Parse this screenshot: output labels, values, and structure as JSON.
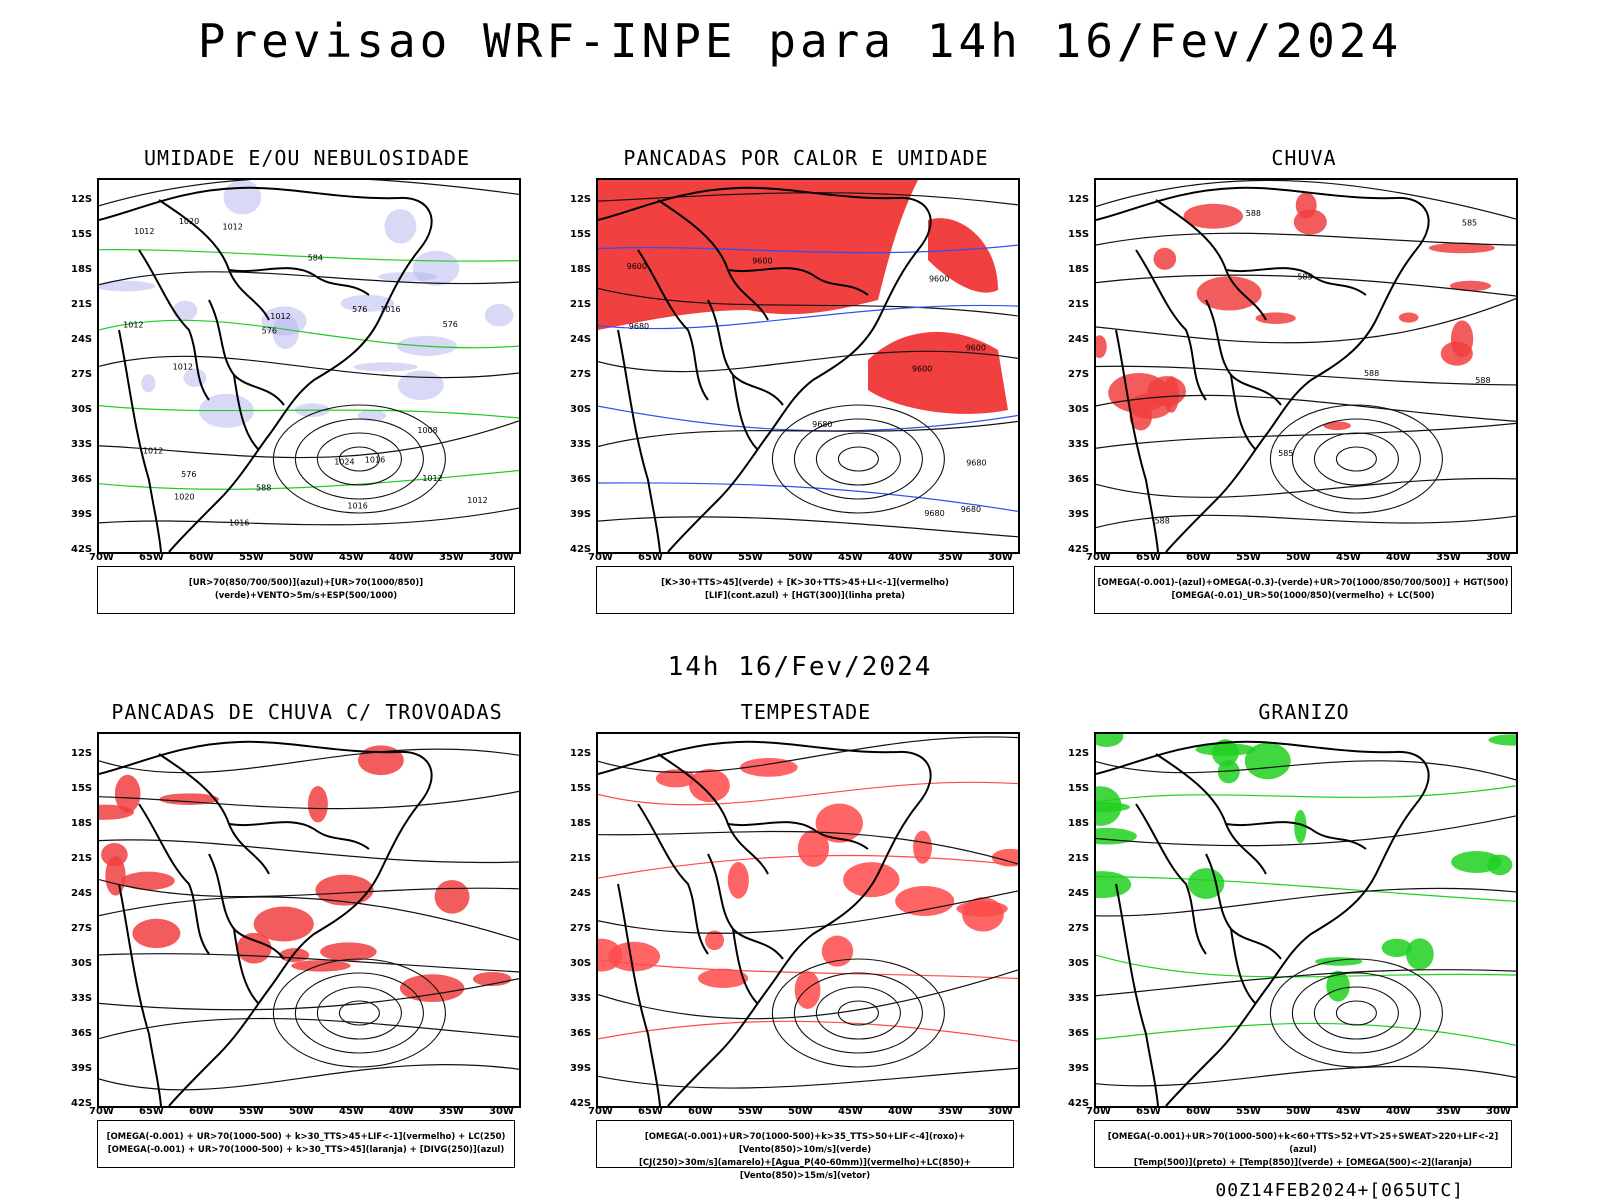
{
  "header": {
    "title": "Previsao WRF-INPE  para 14h 16/Fev/2024"
  },
  "mid_title": "14h 16/Fev/2024",
  "footer_stamp": "00Z14FEB2024+[065UTC]",
  "axes": {
    "lat_ticks": [
      "12S",
      "15S",
      "18S",
      "21S",
      "24S",
      "27S",
      "30S",
      "33S",
      "36S",
      "39S",
      "42S"
    ],
    "lon_ticks": [
      "70W",
      "65W",
      "60W",
      "55W",
      "50W",
      "45W",
      "40W",
      "35W",
      "30W"
    ]
  },
  "panels": [
    {
      "id": "umidade",
      "title": "UMIDADE E/OU NEBULOSIDADE",
      "legend": [
        "[UR>70(850/700/500)](azul)+[UR>70(1000/850)](verde)+VENTO>5m/s+ESP(500/1000)"
      ],
      "contour_labels": [
        "1012",
        "1012",
        "1012",
        "1012",
        "1016",
        "1012",
        "1012",
        "1016",
        "1016",
        "1012",
        "1012",
        "1020",
        "1020",
        "1024",
        "1016",
        "576",
        "576",
        "576",
        "576",
        "584",
        "588",
        "1008"
      ],
      "colors": {
        "fill": "#b8b8f0",
        "line": "#22cc22",
        "dash": "#ff4040"
      }
    },
    {
      "id": "pancadas-calor",
      "title": "PANCADAS POR CALOR E UMIDADE",
      "legend": [
        "[K>30+TTS>45](verde) + [K>30+TTS>45+LI<-1](vermelho)",
        "[LIF](cont.azul) + [HGT(300)](linha preta)"
      ],
      "contour_labels": [
        "9680",
        "9680",
        "9680",
        "9680",
        "9600",
        "9680",
        "9600",
        "9600",
        "9600",
        "9600"
      ],
      "colors": {
        "fill": "#f04040",
        "line": "#3050f0",
        "dark": "#2f4f4f"
      }
    },
    {
      "id": "chuva",
      "title": "CHUVA",
      "legend": [
        "[OMEGA(-0.001)-(azul)+OMEGA(-0.3)-(verde)+UR>70(1000/850/700/500)] + HGT(500)",
        "[OMEGA(-0.01)_UR>50(1000/850)(vermelho) + LC(500)"
      ],
      "contour_labels": [
        "588",
        "588",
        "585",
        "588",
        "585",
        "588",
        "585"
      ],
      "colors": {
        "fill": "#f04040",
        "blue": "#2050f0",
        "green": "#20d020"
      }
    },
    {
      "id": "pancadas-trovoadas",
      "title": "PANCADAS DE CHUVA C/ TROVOADAS",
      "legend": [
        "[OMEGA(-0.001) + UR>70(1000-500) + k>30_TTS>45+LIF<-1](vermelho) + LC(250)",
        "[OMEGA(-0.001) + UR>70(1000-500) + k>30_TTS>45](laranja) + [DIVG(250)](azul)"
      ],
      "contour_labels": [],
      "colors": {
        "fill": "#f04040"
      }
    },
    {
      "id": "tempestade",
      "title": "TEMPESTADE",
      "legend": [
        "[OMEGA(-0.001)+UR>70(1000-500)+k>35_TTS>50+LIF<-4](roxo)+[Vento(850)>10m/s](verde)",
        "[CJ(250)>30m/s](amarelo)+[Agua_P(40-60mm)](vermelho)+LC(850)+[Vento(850)>15m/s](vetor)"
      ],
      "contour_labels": [],
      "colors": {
        "line": "#ff4a4a",
        "green": "#20d020",
        "yellow": "#e8d020"
      }
    },
    {
      "id": "granizo",
      "title": "GRANIZO",
      "legend": [
        "[OMEGA(-0.001)+UR>70(1000-500)+k<60+TTS>52+VT>25+SWEAT>220+LIF<-2](azul)",
        "[Temp(500)](preto) + [Temp(850)](verde) + [OMEGA(500)<-2](laranja)"
      ],
      "contour_labels": [],
      "colors": {
        "line": "#20d020",
        "orange": "#f08020"
      }
    }
  ]
}
